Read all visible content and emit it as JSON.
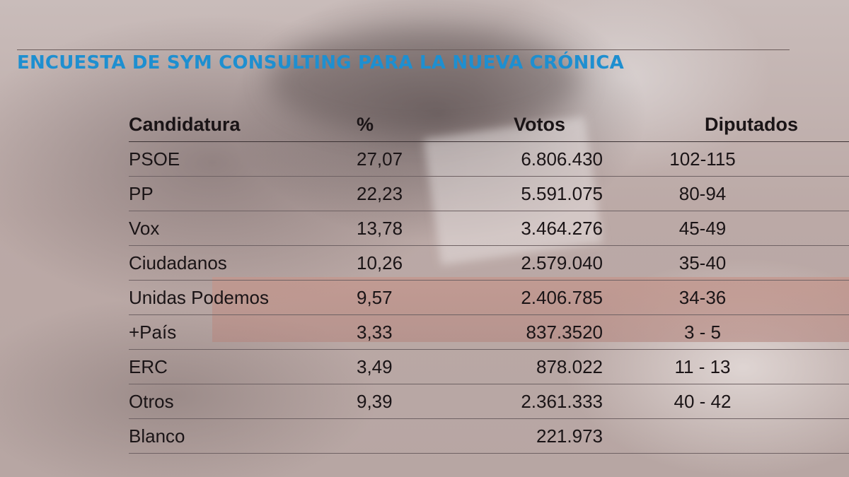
{
  "title": "ENCUESTA DE SYM CONSULTING PARA LA NUEVA CRÓNICA",
  "chart_data": {
    "type": "table",
    "title": "ENCUESTA DE SYM CONSULTING PARA LA NUEVA CRÓNICA",
    "columns": [
      "Candidatura",
      "%",
      "Votos",
      "Diputados"
    ],
    "rows": [
      {
        "party": "PSOE",
        "pct": "27,07",
        "votes": "6.806.430",
        "seats": "102-115"
      },
      {
        "party": "PP",
        "pct": "22,23",
        "votes": "5.591.075",
        "seats": "80-94"
      },
      {
        "party": "Vox",
        "pct": "13,78",
        "votes": "3.464.276",
        "seats": "45-49"
      },
      {
        "party": "Ciudadanos",
        "pct": "10,26",
        "votes": "2.579.040",
        "seats": "35-40"
      },
      {
        "party": "Unidas Podemos",
        "pct": "9,57",
        "votes": "2.406.785",
        "seats": "34-36"
      },
      {
        "party": "+País",
        "pct": "3,33",
        "votes": "837.3520",
        "seats": "3 - 5"
      },
      {
        "party": "ERC",
        "pct": "3,49",
        "votes": "878.022",
        "seats": "11 - 13"
      },
      {
        "party": "Otros",
        "pct": "9,39",
        "votes": "2.361.333",
        "seats": "40 - 42"
      },
      {
        "party": "Blanco",
        "pct": "",
        "votes": "221.973",
        "seats": ""
      }
    ]
  },
  "colors": {
    "title": "#1e8fd0",
    "text": "#1a1416",
    "rule": "#6f6264"
  }
}
